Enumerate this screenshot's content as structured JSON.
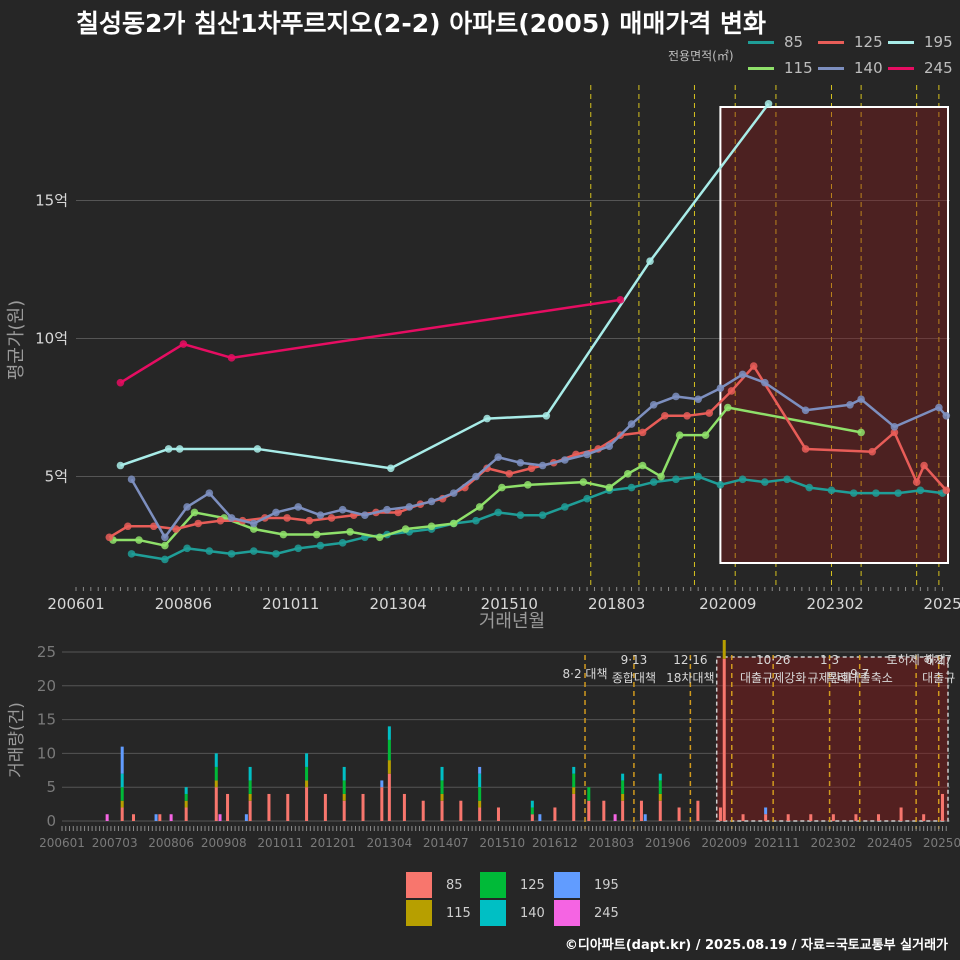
{
  "title": "칠성동2가 침산1차푸르지오(2-2) 아파트(2005) 매매가격 변화",
  "footer": "©디아파트(dapt.kr) / 2025.08.19 / 자료=국토교통부 실거래가",
  "legend": {
    "title": "전용면적(㎡)",
    "items": [
      {
        "label": "85",
        "color": "#1f9e98"
      },
      {
        "label": "115",
        "color": "#8fe06a"
      },
      {
        "label": "125",
        "color": "#e85d58"
      },
      {
        "label": "140",
        "color": "#7d8fbf"
      },
      {
        "label": "195",
        "color": "#a8ece8"
      },
      {
        "label": "245",
        "color": "#e60d62"
      }
    ]
  },
  "bar_legend": {
    "items": [
      {
        "label": "85",
        "color": "#f8766d"
      },
      {
        "label": "115",
        "color": "#b79f00"
      },
      {
        "label": "125",
        "color": "#00ba38"
      },
      {
        "label": "140",
        "color": "#00bfc4"
      },
      {
        "label": "195",
        "color": "#619cff"
      },
      {
        "label": "245",
        "color": "#f564e3"
      }
    ]
  },
  "chart_data": [
    {
      "type": "line",
      "title": "칠성동2가 침산1차푸르지오(2-2) 아파트(2005) 매매가격 변화",
      "xlabel": "거래년월",
      "ylabel": "평균가(원)",
      "x_tick_labels": [
        "200601",
        "200806",
        "201011",
        "201304",
        "201510",
        "201803",
        "202009",
        "202302",
        "2025"
      ],
      "x_range": [
        "2006-01",
        "2025-08"
      ],
      "y_tick_labels": [
        "5억",
        "10억",
        "15억"
      ],
      "y_ticks": [
        5,
        10,
        15
      ],
      "y_range": [
        1,
        19
      ],
      "y_unit": "억",
      "grid": true,
      "policy_lines": [
        "2017-08",
        "2018-09",
        "2019-12",
        "2020-11",
        "2021-10",
        "2023-01",
        "2023-09",
        "2024-12",
        "2025-06"
      ],
      "highlight_range": [
        "2020-07",
        "2025-08"
      ],
      "series": [
        {
          "name": "85",
          "color": "#1f9e98",
          "x": [
            "2007-04",
            "2008-01",
            "2008-07",
            "2009-01",
            "2009-07",
            "2010-01",
            "2010-07",
            "2011-01",
            "2011-07",
            "2012-01",
            "2012-07",
            "2013-01",
            "2013-07",
            "2014-01",
            "2014-07",
            "2015-01",
            "2015-07",
            "2016-01",
            "2016-07",
            "2017-01",
            "2017-07",
            "2018-01",
            "2018-07",
            "2019-01",
            "2019-07",
            "2020-01",
            "2020-07",
            "2021-01",
            "2021-07",
            "2022-01",
            "2022-07",
            "2023-01",
            "2023-07",
            "2024-01",
            "2024-07",
            "2025-01",
            "2025-07"
          ],
          "values": [
            2.2,
            2.0,
            2.4,
            2.3,
            2.2,
            2.3,
            2.2,
            2.4,
            2.5,
            2.6,
            2.8,
            2.9,
            3.0,
            3.1,
            3.3,
            3.4,
            3.7,
            3.6,
            3.6,
            3.9,
            4.2,
            4.5,
            4.6,
            4.8,
            4.9,
            5.0,
            4.7,
            4.9,
            4.8,
            4.9,
            4.6,
            4.5,
            4.4,
            4.4,
            4.4,
            4.5,
            4.4
          ]
        },
        {
          "name": "115",
          "color": "#8fe06a",
          "x": [
            "2006-11",
            "2007-06",
            "2008-01",
            "2008-09",
            "2009-05",
            "2010-01",
            "2010-09",
            "2011-06",
            "2012-03",
            "2012-11",
            "2013-06",
            "2014-01",
            "2014-07",
            "2015-02",
            "2015-08",
            "2016-03",
            "2017-06",
            "2018-01",
            "2018-06",
            "2018-10",
            "2019-03",
            "2019-08",
            "2020-03",
            "2020-09",
            "2023-09"
          ],
          "values": [
            2.7,
            2.7,
            2.5,
            3.7,
            3.5,
            3.1,
            2.9,
            2.9,
            3.0,
            2.8,
            3.1,
            3.2,
            3.3,
            3.9,
            4.6,
            4.7,
            4.8,
            4.6,
            5.1,
            5.4,
            5.0,
            6.5,
            6.5,
            7.5,
            6.6
          ]
        },
        {
          "name": "125",
          "color": "#e85d58",
          "x": [
            "2006-10",
            "2007-03",
            "2007-10",
            "2008-04",
            "2008-10",
            "2009-04",
            "2009-10",
            "2010-04",
            "2010-10",
            "2011-04",
            "2011-10",
            "2012-04",
            "2012-10",
            "2013-04",
            "2013-10",
            "2014-04",
            "2014-10",
            "2015-04",
            "2015-10",
            "2016-04",
            "2016-10",
            "2017-04",
            "2017-10",
            "2018-04",
            "2018-10",
            "2019-04",
            "2019-10",
            "2020-04",
            "2020-10",
            "2021-04",
            "2022-06",
            "2023-12",
            "2024-06",
            "2024-12",
            "2025-02",
            "2025-08"
          ],
          "values": [
            2.8,
            3.2,
            3.2,
            3.1,
            3.3,
            3.4,
            3.4,
            3.5,
            3.5,
            3.4,
            3.5,
            3.6,
            3.7,
            3.7,
            4.0,
            4.2,
            4.6,
            5.3,
            5.1,
            5.3,
            5.5,
            5.8,
            6.0,
            6.5,
            6.6,
            7.2,
            7.2,
            7.3,
            8.1,
            9.0,
            6.0,
            5.9,
            6.6,
            4.8,
            5.4,
            4.5
          ]
        },
        {
          "name": "140",
          "color": "#7d8fbf",
          "x": [
            "2007-04",
            "2008-01",
            "2008-07",
            "2009-01",
            "2009-07",
            "2010-01",
            "2010-07",
            "2011-01",
            "2011-07",
            "2012-01",
            "2012-07",
            "2013-01",
            "2013-07",
            "2014-01",
            "2014-07",
            "2015-01",
            "2015-07",
            "2016-01",
            "2016-07",
            "2017-01",
            "2017-07",
            "2018-01",
            "2018-07",
            "2019-01",
            "2019-07",
            "2020-01",
            "2020-07",
            "2021-01",
            "2021-07",
            "2022-06",
            "2023-06",
            "2023-09",
            "2024-06",
            "2025-06",
            "2025-08"
          ],
          "values": [
            4.9,
            2.8,
            3.9,
            4.4,
            3.5,
            3.3,
            3.7,
            3.9,
            3.6,
            3.8,
            3.6,
            3.8,
            3.9,
            4.1,
            4.4,
            5.0,
            5.7,
            5.5,
            5.4,
            5.6,
            5.8,
            6.1,
            6.9,
            7.6,
            7.9,
            7.8,
            8.2,
            8.7,
            8.4,
            7.4,
            7.6,
            7.8,
            6.8,
            7.5,
            7.2
          ]
        },
        {
          "name": "195",
          "color": "#a8ece8",
          "x": [
            "2007-01",
            "2008-02",
            "2008-05",
            "2010-02",
            "2013-02",
            "2015-04",
            "2016-08",
            "2018-12",
            "2021-08"
          ],
          "values": [
            5.4,
            6.0,
            6.0,
            6.0,
            5.3,
            7.1,
            7.2,
            12.8,
            18.5
          ]
        },
        {
          "name": "245",
          "color": "#e60d62",
          "x": [
            "2007-01",
            "2008-06",
            "2009-07",
            "2018-04"
          ],
          "values": [
            8.4,
            9.8,
            9.3,
            11.4
          ]
        }
      ]
    },
    {
      "type": "bar",
      "ylabel": "거래량(건)",
      "x_tick_labels": [
        "200601",
        "200703",
        "200806",
        "200908",
        "201011",
        "201201",
        "201304",
        "201407",
        "201510",
        "201612",
        "201803",
        "201906",
        "202009",
        "202111",
        "202302",
        "202405",
        "20250"
      ],
      "y_tick_labels": [
        "0",
        "5",
        "10",
        "15",
        "20",
        "25"
      ],
      "y_ticks": [
        0,
        5,
        10,
        15,
        20,
        25
      ],
      "y_range": [
        0,
        25
      ],
      "stacked": true,
      "highlight_range": [
        "2020-07",
        "2025-08"
      ],
      "annotations": [
        {
          "text": "8·2 대책",
          "x": "2017-08",
          "date": "2017-08"
        },
        {
          "text": "9·13",
          "x": "2018-09",
          "date": "2018-09"
        },
        {
          "text": "종합대책",
          "x": "2018-09",
          "date": "2018-09"
        },
        {
          "text": "12·16",
          "x": "2019-12",
          "date": "2019-12"
        },
        {
          "text": "18차대책",
          "x": "2019-12",
          "date": "2019-12"
        },
        {
          "text": "10·26",
          "x": "2021-10",
          "date": "2021-10"
        },
        {
          "text": "대출규제강화",
          "x": "2021-10",
          "date": "2021-10"
        },
        {
          "text": "1·3",
          "x": "2023-01",
          "date": "2023-01"
        },
        {
          "text": "규제완화",
          "x": "2023-01",
          "date": "2023-01"
        },
        {
          "text": "9·7",
          "x": "2023-09",
          "date": "2023-09"
        },
        {
          "text": "특례대출축소",
          "x": "2023-09",
          "date": "2023-09"
        },
        {
          "text": "토허제 해제",
          "x": "2024-12",
          "date": "2024-12"
        },
        {
          "text": "6·27",
          "x": "2025-06",
          "date": "2025-06"
        },
        {
          "text": "대출규",
          "x": "2025-06",
          "date": "2025-06"
        }
      ],
      "summary_series": [
        {
          "name": "85",
          "color": "#f8766d",
          "x": [
            "2007-05",
            "2007-08",
            "2008-03",
            "2008-10",
            "2009-06",
            "2009-09",
            "2010-03",
            "2010-08",
            "2011-01",
            "2011-06",
            "2011-11",
            "2012-04",
            "2012-09",
            "2013-02",
            "2013-04",
            "2013-08",
            "2014-01",
            "2014-06",
            "2014-11",
            "2015-04",
            "2015-09",
            "2016-06",
            "2016-12",
            "2017-05",
            "2017-09",
            "2018-01",
            "2018-06",
            "2018-11",
            "2019-04",
            "2019-09",
            "2020-02",
            "2020-08",
            "2020-09",
            "2021-02",
            "2021-08",
            "2022-02",
            "2022-08",
            "2023-02",
            "2023-08",
            "2024-02",
            "2024-08",
            "2025-02",
            "2025-07"
          ],
          "values": [
            2,
            1,
            1,
            2,
            5,
            4,
            3,
            4,
            4,
            5,
            4,
            3,
            4,
            5,
            7,
            4,
            3,
            3,
            3,
            2,
            2,
            1,
            2,
            4,
            3,
            3,
            3,
            3,
            3,
            2,
            3,
            2,
            24,
            1,
            1,
            1,
            1,
            1,
            1,
            1,
            2,
            1,
            4
          ]
        },
        {
          "name": "115",
          "color": "#b79f00",
          "x": [
            "2007-05",
            "2008-10",
            "2009-06",
            "2010-03",
            "2011-06",
            "2012-04",
            "2013-04",
            "2014-06",
            "2015-04",
            "2016-06",
            "2017-05",
            "2018-06",
            "2019-04",
            "2020-09"
          ],
          "values": [
            1,
            1,
            1,
            1,
            1,
            1,
            2,
            1,
            1,
            0,
            1,
            1,
            1,
            3
          ]
        },
        {
          "name": "125",
          "color": "#00ba38",
          "x": [
            "2007-05",
            "2008-10",
            "2009-06",
            "2010-03",
            "2011-06",
            "2012-04",
            "2013-04",
            "2014-06",
            "2015-04",
            "2016-06",
            "2017-05",
            "2017-09",
            "2018-06",
            "2019-04",
            "2020-09"
          ],
          "values": [
            2,
            1,
            2,
            2,
            2,
            2,
            3,
            2,
            2,
            1,
            2,
            2,
            2,
            2,
            2
          ]
        },
        {
          "name": "140",
          "color": "#00bfc4",
          "x": [
            "2007-05",
            "2008-10",
            "2009-06",
            "2010-03",
            "2011-06",
            "2012-04",
            "2013-04",
            "2014-06",
            "2015-04",
            "2016-06",
            "2017-05",
            "2018-06",
            "2019-04",
            "2020-09"
          ],
          "values": [
            2,
            1,
            2,
            2,
            2,
            2,
            2,
            2,
            2,
            1,
            1,
            1,
            1,
            1
          ]
        },
        {
          "name": "195",
          "color": "#619cff",
          "x": [
            "2007-05",
            "2008-02",
            "2010-02",
            "2013-02",
            "2015-04",
            "2016-08",
            "2018-12",
            "2021-08"
          ],
          "values": [
            4,
            1,
            1,
            1,
            1,
            1,
            1,
            1
          ]
        },
        {
          "name": "245",
          "color": "#f564e3",
          "x": [
            "2007-01",
            "2008-06",
            "2009-07",
            "2018-04"
          ],
          "values": [
            1,
            1,
            1,
            1
          ]
        }
      ]
    }
  ]
}
